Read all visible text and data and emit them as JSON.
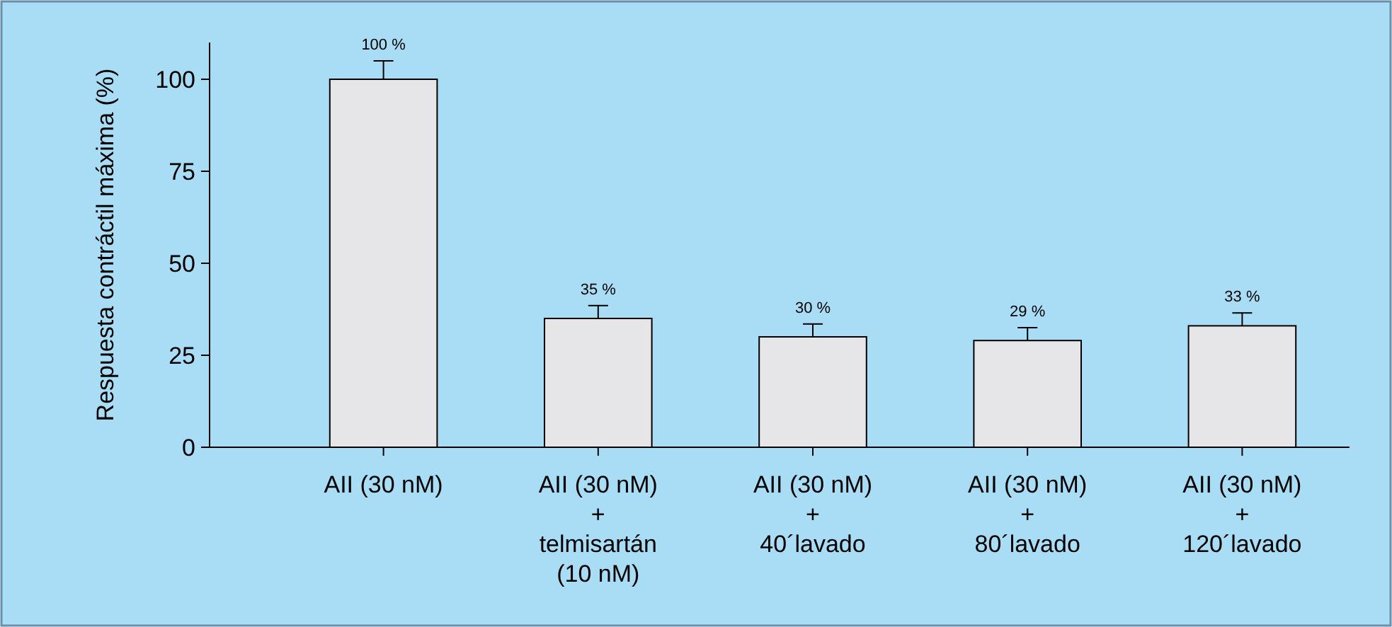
{
  "chart_data": {
    "type": "bar",
    "ylabel": "Respuesta contráctil máxima (%)",
    "categories": [
      "AII (30 nM)",
      "AII (30 nM)\n+\ntelmisartán\n(10 nM)",
      "AII (30 nM)\n+\n40´lavado",
      "AII (30 nM)\n+\n80´lavado",
      "AII (30 nM)\n+\n120´lavado"
    ],
    "values": [
      100,
      35,
      30,
      29,
      33
    ],
    "errors": [
      5,
      3.5,
      3.5,
      3.5,
      3.5
    ],
    "value_labels": [
      "100 %",
      "35 %",
      "30 %",
      "29 %",
      "33 %"
    ],
    "color": "#e6e6e8",
    "ylim": [
      0,
      110
    ],
    "yticks": [
      0,
      25,
      50,
      75,
      100
    ],
    "grid": false
  }
}
